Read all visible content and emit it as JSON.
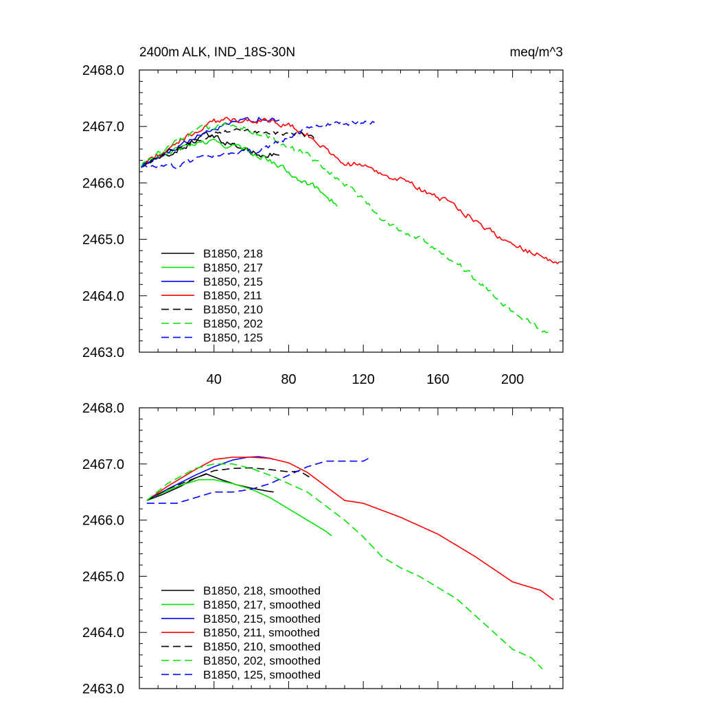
{
  "chart_data": [
    {
      "type": "line",
      "title_left": "2400m ALK, IND_18S-30N",
      "title_right": "meq/m^3",
      "xlim": [
        0,
        227
      ],
      "ylim": [
        2463.0,
        2468.0
      ],
      "x_ticks": [
        40,
        80,
        120,
        160,
        200
      ],
      "x_tick_labels": [
        "40",
        "80",
        "120",
        "160",
        "200"
      ],
      "y_ticks": [
        2463.0,
        2464.0,
        2465.0,
        2466.0,
        2467.0,
        2468.0
      ],
      "y_tick_labels": [
        "2463.0",
        "2464.0",
        "2465.0",
        "2466.0",
        "2467.0",
        "2468.0"
      ],
      "grid": false,
      "legend_position": "bottom-left",
      "series": [
        {
          "name": "B1850, 218",
          "color": "#000000",
          "dash": "solid",
          "noise": 0.045,
          "x": [
            1,
            12,
            22,
            30,
            36,
            44,
            52,
            60,
            68,
            75
          ],
          "y": [
            2466.3,
            2466.45,
            2466.6,
            2466.75,
            2466.85,
            2466.75,
            2466.65,
            2466.55,
            2466.5,
            2466.5
          ]
        },
        {
          "name": "B1850, 217",
          "color": "#00e400",
          "dash": "solid",
          "noise": 0.045,
          "x": [
            1,
            10,
            20,
            30,
            40,
            50,
            60,
            70,
            80,
            90,
            100,
            106
          ],
          "y": [
            2466.3,
            2466.45,
            2466.6,
            2466.7,
            2466.72,
            2466.65,
            2466.55,
            2466.4,
            2466.2,
            2466.0,
            2465.8,
            2465.6
          ]
        },
        {
          "name": "B1850, 215",
          "color": "#0000ff",
          "dash": "solid",
          "noise": 0.04,
          "x": [
            1,
            15,
            30,
            40,
            50,
            58,
            64,
            70,
            75
          ],
          "y": [
            2466.3,
            2466.55,
            2466.8,
            2466.95,
            2467.05,
            2467.12,
            2467.15,
            2467.12,
            2467.08
          ]
        },
        {
          "name": "B1850, 211",
          "color": "#ff0000",
          "dash": "solid",
          "noise": 0.045,
          "x": [
            1,
            15,
            30,
            40,
            50,
            60,
            70,
            80,
            90,
            100,
            110,
            120,
            140,
            160,
            180,
            200,
            215,
            225
          ],
          "y": [
            2466.3,
            2466.6,
            2466.9,
            2467.08,
            2467.12,
            2467.12,
            2467.1,
            2467.02,
            2466.85,
            2466.6,
            2466.35,
            2466.3,
            2466.05,
            2465.75,
            2465.35,
            2464.9,
            2464.7,
            2464.6
          ]
        },
        {
          "name": "B1850, 210",
          "color": "#000000",
          "dash": "long",
          "noise": 0.035,
          "x": [
            1,
            15,
            30,
            40,
            50,
            60,
            70,
            80,
            86,
            95
          ],
          "y": [
            2466.3,
            2466.55,
            2466.75,
            2466.88,
            2466.93,
            2466.93,
            2466.9,
            2466.85,
            2466.88,
            2466.75
          ]
        },
        {
          "name": "B1850, 202",
          "color": "#00e400",
          "dash": "long",
          "noise": 0.045,
          "x": [
            1,
            15,
            30,
            40,
            50,
            60,
            70,
            80,
            90,
            100,
            110,
            120,
            130,
            140,
            150,
            160,
            170,
            180,
            190,
            200,
            210,
            220
          ],
          "y": [
            2466.3,
            2466.65,
            2466.92,
            2467.0,
            2467.0,
            2466.92,
            2466.8,
            2466.65,
            2466.5,
            2466.25,
            2466.0,
            2465.7,
            2465.35,
            2465.15,
            2465.0,
            2464.8,
            2464.6,
            2464.3,
            2464.0,
            2463.7,
            2463.55,
            2463.3
          ]
        },
        {
          "name": "B1850, 125",
          "color": "#0000ff",
          "dash": "long",
          "noise": 0.04,
          "x": [
            1,
            10,
            20,
            30,
            40,
            50,
            60,
            70,
            80,
            90,
            100,
            110,
            120,
            126
          ],
          "y": [
            2466.28,
            2466.3,
            2466.3,
            2466.4,
            2466.5,
            2466.5,
            2466.55,
            2466.65,
            2466.8,
            2466.95,
            2467.05,
            2467.05,
            2467.05,
            2467.1
          ]
        }
      ]
    },
    {
      "type": "line",
      "xlim": [
        0,
        227
      ],
      "ylim": [
        2463.0,
        2468.0
      ],
      "x_ticks": [
        40,
        80,
        120,
        160,
        200
      ],
      "y_ticks": [
        2463.0,
        2464.0,
        2465.0,
        2466.0,
        2467.0,
        2468.0
      ],
      "y_tick_labels": [
        "2463.0",
        "2464.0",
        "2465.0",
        "2466.0",
        "2467.0",
        "2468.0"
      ],
      "grid": false,
      "legend_position": "bottom-left",
      "series": [
        {
          "name": "B1850, 218, smoothed",
          "color": "#000000",
          "dash": "solid",
          "noise": 0,
          "x": [
            4,
            12,
            22,
            30,
            36,
            44,
            52,
            60,
            68,
            72
          ],
          "y": [
            2466.35,
            2466.45,
            2466.6,
            2466.75,
            2466.82,
            2466.72,
            2466.63,
            2466.57,
            2466.52,
            2466.5
          ]
        },
        {
          "name": "B1850, 217, smoothed",
          "color": "#00e400",
          "dash": "solid",
          "noise": 0,
          "x": [
            4,
            12,
            22,
            32,
            40,
            50,
            60,
            70,
            80,
            90,
            100,
            103
          ],
          "y": [
            2466.35,
            2466.48,
            2466.62,
            2466.72,
            2466.72,
            2466.65,
            2466.55,
            2466.4,
            2466.2,
            2466.0,
            2465.8,
            2465.72
          ]
        },
        {
          "name": "B1850, 215, smoothed",
          "color": "#0000ff",
          "dash": "solid",
          "noise": 0,
          "x": [
            4,
            15,
            30,
            40,
            50,
            58,
            64,
            70,
            72
          ],
          "y": [
            2466.35,
            2466.55,
            2466.8,
            2466.95,
            2467.07,
            2467.12,
            2467.13,
            2467.1,
            2467.08
          ]
        },
        {
          "name": "B1850, 211, smoothed",
          "color": "#ff0000",
          "dash": "solid",
          "noise": 0,
          "x": [
            4,
            15,
            30,
            40,
            50,
            60,
            70,
            80,
            90,
            100,
            110,
            120,
            140,
            160,
            180,
            200,
            215,
            222
          ],
          "y": [
            2466.35,
            2466.6,
            2466.9,
            2467.08,
            2467.12,
            2467.12,
            2467.1,
            2467.02,
            2466.85,
            2466.6,
            2466.35,
            2466.3,
            2466.05,
            2465.75,
            2465.35,
            2464.9,
            2464.75,
            2464.58
          ]
        },
        {
          "name": "B1850, 210, smoothed",
          "color": "#000000",
          "dash": "long",
          "noise": 0,
          "x": [
            4,
            15,
            30,
            40,
            50,
            60,
            70,
            80,
            86,
            92
          ],
          "y": [
            2466.35,
            2466.55,
            2466.75,
            2466.88,
            2466.92,
            2466.93,
            2466.9,
            2466.86,
            2466.87,
            2466.75
          ]
        },
        {
          "name": "B1850, 202, smoothed",
          "color": "#00e400",
          "dash": "long",
          "noise": 0,
          "x": [
            4,
            15,
            30,
            40,
            50,
            60,
            70,
            80,
            90,
            100,
            110,
            120,
            130,
            140,
            150,
            160,
            170,
            180,
            190,
            200,
            210,
            216
          ],
          "y": [
            2466.35,
            2466.65,
            2466.92,
            2467.0,
            2467.0,
            2466.92,
            2466.8,
            2466.65,
            2466.5,
            2466.25,
            2466.0,
            2465.7,
            2465.35,
            2465.15,
            2465.0,
            2464.8,
            2464.6,
            2464.3,
            2464.0,
            2463.7,
            2463.55,
            2463.35
          ]
        },
        {
          "name": "B1850, 125, smoothed",
          "color": "#0000ff",
          "dash": "long",
          "noise": 0,
          "x": [
            4,
            10,
            20,
            30,
            40,
            50,
            60,
            70,
            80,
            90,
            100,
            110,
            120,
            124
          ],
          "y": [
            2466.3,
            2466.3,
            2466.3,
            2466.4,
            2466.5,
            2466.5,
            2466.55,
            2466.65,
            2466.8,
            2466.95,
            2467.05,
            2467.05,
            2467.05,
            2467.12
          ]
        }
      ]
    }
  ]
}
